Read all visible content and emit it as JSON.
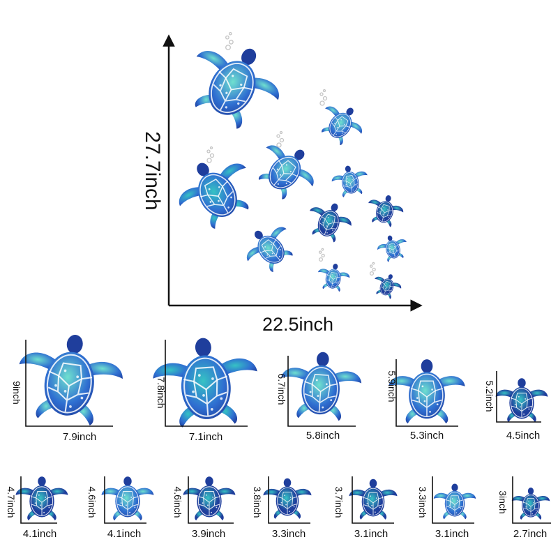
{
  "overview": {
    "height_label": "27.7inch",
    "width_label": "22.5inch"
  },
  "colors": {
    "deep_blue": "#1f3e9c",
    "mid_blue": "#2f6fd1",
    "teal": "#36c2c4",
    "light_teal": "#6fe0cf",
    "bubble": "#c4c4c4",
    "axis": "#111111"
  },
  "pieces": [
    {
      "height_label": "9inch",
      "width_label": "7.9inch"
    },
    {
      "height_label": "7.8inch",
      "width_label": "7.1inch"
    },
    {
      "height_label": "6.7inch",
      "width_label": "5.8inch"
    },
    {
      "height_label": "5.9inch",
      "width_label": "5.3inch"
    },
    {
      "height_label": "5.2inch",
      "width_label": "4.5inch"
    },
    {
      "height_label": "4.7inch",
      "width_label": "4.1inch"
    },
    {
      "height_label": "4.6inch",
      "width_label": "4.1inch"
    },
    {
      "height_label": "4.6inch",
      "width_label": "3.9inch"
    },
    {
      "height_label": "3.8inch",
      "width_label": "3.3inch"
    },
    {
      "height_label": "3.7inch",
      "width_label": "3.1inch"
    },
    {
      "height_label": "3.3inch",
      "width_label": "3.1inch"
    },
    {
      "height_label": "3inch",
      "width_label": "2.7inch"
    }
  ]
}
